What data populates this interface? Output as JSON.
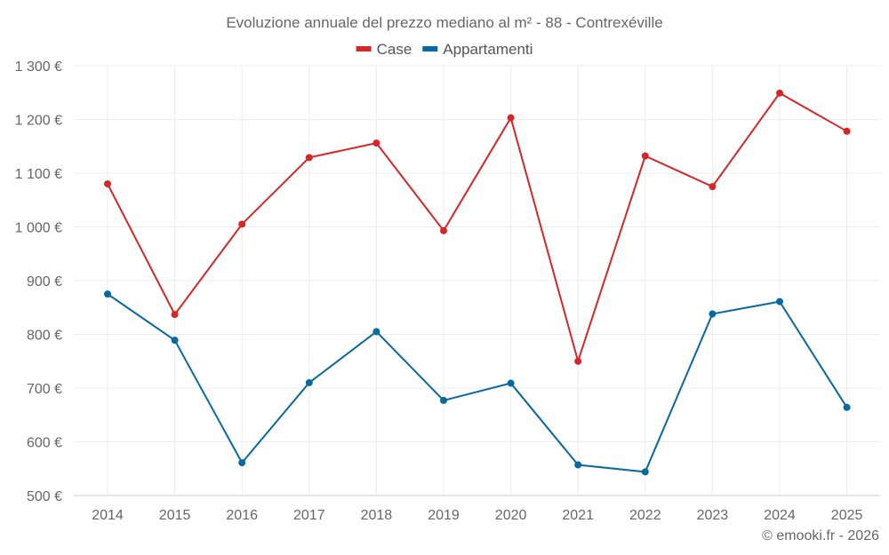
{
  "chart_data": {
    "type": "line",
    "title": "Evoluzione annuale del prezzo mediano al m² - 88 - Contrexéville",
    "categories": [
      "2014",
      "2015",
      "2016",
      "2017",
      "2018",
      "2019",
      "2020",
      "2021",
      "2022",
      "2023",
      "2024",
      "2025"
    ],
    "series": [
      {
        "name": "Case",
        "color": "#d62728",
        "values": [
          1080,
          837,
          1005,
          1129,
          1156,
          993,
          1203,
          750,
          1132,
          1075,
          1249,
          1178
        ]
      },
      {
        "name": "Appartamenti",
        "color": "#0868a0",
        "values": [
          875,
          789,
          561,
          710,
          805,
          677,
          709,
          557,
          544,
          838,
          861,
          664
        ]
      }
    ],
    "ylim": [
      500,
      1300
    ],
    "yticks": [
      500,
      600,
      700,
      800,
      900,
      1000,
      1100,
      1200,
      1300
    ],
    "ytick_labels": [
      "500 €",
      "600 €",
      "700 €",
      "800 €",
      "900 €",
      "1 000 €",
      "1 100 €",
      "1 200 €",
      "1 300 €"
    ],
    "legend_position": "top-center",
    "xlabel": "",
    "ylabel": ""
  },
  "credit": "© emooki.fr - 2026"
}
